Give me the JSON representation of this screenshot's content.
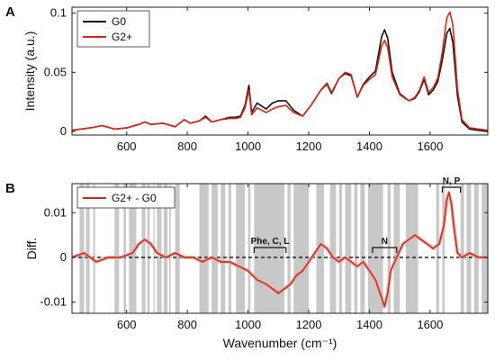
{
  "chart_data": [
    {
      "panel_label": "A",
      "type": "line",
      "xlabel": "",
      "ylabel": "Intensity (a.u.)",
      "xlim": [
        420,
        1790
      ],
      "ylim": [
        -0.003,
        0.105
      ],
      "x_ticks": [
        600,
        800,
        1000,
        1200,
        1400,
        1600
      ],
      "y_ticks": [
        0,
        0.05,
        0.1
      ],
      "y_tick_labels": [
        "0",
        "0.05",
        "0.1"
      ],
      "legend_position": "top-left",
      "series": [
        {
          "name": "G0",
          "color": "#111111",
          "points": [
            [
              420,
              0.001
            ],
            [
              480,
              0.003
            ],
            [
              520,
              0.005
            ],
            [
              560,
              0.002
            ],
            [
              600,
              0.003
            ],
            [
              640,
              0.006
            ],
            [
              660,
              0.008
            ],
            [
              680,
              0.006
            ],
            [
              720,
              0.007
            ],
            [
              760,
              0.004
            ],
            [
              790,
              0.01
            ],
            [
              810,
              0.007
            ],
            [
              840,
              0.009
            ],
            [
              860,
              0.013
            ],
            [
              880,
              0.008
            ],
            [
              910,
              0.01
            ],
            [
              940,
              0.012
            ],
            [
              960,
              0.012
            ],
            [
              975,
              0.013
            ],
            [
              990,
              0.022
            ],
            [
              1003,
              0.039
            ],
            [
              1012,
              0.016
            ],
            [
              1030,
              0.024
            ],
            [
              1060,
              0.019
            ],
            [
              1080,
              0.024
            ],
            [
              1100,
              0.026
            ],
            [
              1125,
              0.026
            ],
            [
              1150,
              0.018
            ],
            [
              1180,
              0.013
            ],
            [
              1210,
              0.023
            ],
            [
              1240,
              0.035
            ],
            [
              1260,
              0.04
            ],
            [
              1275,
              0.032
            ],
            [
              1300,
              0.045
            ],
            [
              1320,
              0.049
            ],
            [
              1340,
              0.047
            ],
            [
              1360,
              0.029
            ],
            [
              1380,
              0.04
            ],
            [
              1400,
              0.046
            ],
            [
              1420,
              0.051
            ],
            [
              1440,
              0.08
            ],
            [
              1450,
              0.086
            ],
            [
              1460,
              0.079
            ],
            [
              1475,
              0.05
            ],
            [
              1500,
              0.032
            ],
            [
              1530,
              0.026
            ],
            [
              1550,
              0.028
            ],
            [
              1565,
              0.034
            ],
            [
              1580,
              0.044
            ],
            [
              1595,
              0.031
            ],
            [
              1610,
              0.035
            ],
            [
              1625,
              0.042
            ],
            [
              1640,
              0.06
            ],
            [
              1655,
              0.083
            ],
            [
              1665,
              0.087
            ],
            [
              1675,
              0.075
            ],
            [
              1690,
              0.03
            ],
            [
              1705,
              0.008
            ],
            [
              1730,
              0.002
            ],
            [
              1790,
              0.0
            ]
          ]
        },
        {
          "name": "G2+",
          "color": "#d62718",
          "points": [
            [
              420,
              0.001
            ],
            [
              480,
              0.003
            ],
            [
              520,
              0.005
            ],
            [
              560,
              0.002
            ],
            [
              600,
              0.003
            ],
            [
              640,
              0.006
            ],
            [
              660,
              0.008
            ],
            [
              680,
              0.006
            ],
            [
              720,
              0.007
            ],
            [
              760,
              0.004
            ],
            [
              790,
              0.01
            ],
            [
              810,
              0.007
            ],
            [
              840,
              0.009
            ],
            [
              860,
              0.012
            ],
            [
              880,
              0.008
            ],
            [
              910,
              0.01
            ],
            [
              940,
              0.011
            ],
            [
              960,
              0.011
            ],
            [
              975,
              0.012
            ],
            [
              990,
              0.02
            ],
            [
              1003,
              0.035
            ],
            [
              1012,
              0.014
            ],
            [
              1030,
              0.02
            ],
            [
              1060,
              0.016
            ],
            [
              1080,
              0.019
            ],
            [
              1100,
              0.021
            ],
            [
              1125,
              0.022
            ],
            [
              1150,
              0.016
            ],
            [
              1180,
              0.013
            ],
            [
              1210,
              0.023
            ],
            [
              1240,
              0.035
            ],
            [
              1260,
              0.041
            ],
            [
              1275,
              0.033
            ],
            [
              1300,
              0.045
            ],
            [
              1320,
              0.05
            ],
            [
              1340,
              0.048
            ],
            [
              1360,
              0.029
            ],
            [
              1380,
              0.039
            ],
            [
              1400,
              0.044
            ],
            [
              1420,
              0.048
            ],
            [
              1440,
              0.072
            ],
            [
              1450,
              0.077
            ],
            [
              1460,
              0.071
            ],
            [
              1475,
              0.046
            ],
            [
              1500,
              0.031
            ],
            [
              1530,
              0.026
            ],
            [
              1550,
              0.029
            ],
            [
              1565,
              0.035
            ],
            [
              1580,
              0.046
            ],
            [
              1595,
              0.033
            ],
            [
              1610,
              0.037
            ],
            [
              1625,
              0.045
            ],
            [
              1640,
              0.067
            ],
            [
              1655,
              0.096
            ],
            [
              1665,
              0.101
            ],
            [
              1675,
              0.09
            ],
            [
              1690,
              0.036
            ],
            [
              1705,
              0.01
            ],
            [
              1730,
              0.003
            ],
            [
              1790,
              0.001
            ]
          ]
        }
      ]
    },
    {
      "panel_label": "B",
      "type": "line",
      "xlabel": "Wavenumber (cm⁻¹)",
      "ylabel": "Diff.",
      "xlim": [
        420,
        1790
      ],
      "ylim": [
        -0.0125,
        0.0165
      ],
      "x_ticks": [
        600,
        800,
        1000,
        1200,
        1400,
        1600
      ],
      "y_ticks": [
        -0.01,
        0,
        0.01
      ],
      "y_tick_labels": [
        "-0.01",
        "0",
        "0.01"
      ],
      "legend_position": "top-left",
      "series": [
        {
          "name": "G2+ - G0",
          "color": "#c0321c",
          "points": [
            [
              420,
              0.0
            ],
            [
              460,
              0.001
            ],
            [
              500,
              -0.001
            ],
            [
              540,
              0.0
            ],
            [
              580,
              0.0
            ],
            [
              620,
              0.001
            ],
            [
              640,
              0.003
            ],
            [
              660,
              0.004
            ],
            [
              680,
              0.003
            ],
            [
              700,
              0.001
            ],
            [
              730,
              0.0
            ],
            [
              760,
              0.001
            ],
            [
              790,
              0.0
            ],
            [
              820,
              0.0
            ],
            [
              850,
              -0.001
            ],
            [
              880,
              0.0
            ],
            [
              910,
              -0.001
            ],
            [
              940,
              -0.001
            ],
            [
              970,
              -0.002
            ],
            [
              1000,
              -0.003
            ],
            [
              1030,
              -0.005
            ],
            [
              1060,
              -0.006
            ],
            [
              1080,
              -0.007
            ],
            [
              1100,
              -0.008
            ],
            [
              1120,
              -0.007
            ],
            [
              1140,
              -0.006
            ],
            [
              1160,
              -0.004
            ],
            [
              1180,
              -0.003
            ],
            [
              1200,
              -0.001
            ],
            [
              1220,
              0.001
            ],
            [
              1240,
              0.003
            ],
            [
              1260,
              0.002
            ],
            [
              1280,
              0.0
            ],
            [
              1300,
              -0.001
            ],
            [
              1320,
              0.0
            ],
            [
              1340,
              -0.001
            ],
            [
              1360,
              -0.002
            ],
            [
              1380,
              -0.001
            ],
            [
              1400,
              -0.003
            ],
            [
              1420,
              -0.005
            ],
            [
              1430,
              -0.007
            ],
            [
              1440,
              -0.009
            ],
            [
              1450,
              -0.011
            ],
            [
              1460,
              -0.008
            ],
            [
              1470,
              -0.003
            ],
            [
              1490,
              0.0
            ],
            [
              1510,
              0.003
            ],
            [
              1530,
              0.004
            ],
            [
              1550,
              0.005
            ],
            [
              1570,
              0.004
            ],
            [
              1590,
              0.003
            ],
            [
              1610,
              0.002
            ],
            [
              1630,
              0.003
            ],
            [
              1645,
              0.007
            ],
            [
              1655,
              0.013
            ],
            [
              1662,
              0.0145
            ],
            [
              1670,
              0.012
            ],
            [
              1680,
              0.006
            ],
            [
              1690,
              0.001
            ],
            [
              1705,
              0.0
            ],
            [
              1730,
              0.001
            ],
            [
              1760,
              0.0
            ],
            [
              1790,
              0.0
            ]
          ]
        }
      ],
      "zero_reference_line": 0,
      "shaded_bands_x": [
        [
          445,
          460
        ],
        [
          466,
          478
        ],
        [
          490,
          496
        ],
        [
          560,
          575
        ],
        [
          590,
          598
        ],
        [
          608,
          632
        ],
        [
          650,
          662
        ],
        [
          668,
          676
        ],
        [
          688,
          692
        ],
        [
          700,
          715
        ],
        [
          722,
          735
        ],
        [
          740,
          745
        ],
        [
          760,
          775
        ],
        [
          840,
          870
        ],
        [
          880,
          900
        ],
        [
          910,
          925
        ],
        [
          935,
          945
        ],
        [
          960,
          990
        ],
        [
          1000,
          1008
        ],
        [
          1020,
          1120
        ],
        [
          1130,
          1140
        ],
        [
          1150,
          1200
        ],
        [
          1225,
          1250
        ],
        [
          1270,
          1290
        ],
        [
          1300,
          1310
        ],
        [
          1320,
          1340
        ],
        [
          1350,
          1360
        ],
        [
          1370,
          1385
        ],
        [
          1395,
          1445
        ],
        [
          1460,
          1470
        ],
        [
          1480,
          1500
        ],
        [
          1520,
          1560
        ],
        [
          1620,
          1630
        ],
        [
          1640,
          1648
        ],
        [
          1700,
          1712
        ],
        [
          1720,
          1735
        ],
        [
          1745,
          1760
        ],
        [
          1770,
          1790
        ]
      ],
      "annotations": [
        {
          "text": "Phe, C, L",
          "x_range": [
            1020,
            1125
          ],
          "y": 0.0022
        },
        {
          "text": "N",
          "x_range": [
            1410,
            1490
          ],
          "y": 0.0022
        },
        {
          "text": "N, P",
          "x_range": [
            1640,
            1700
          ],
          "y": 0.0157
        }
      ]
    }
  ]
}
